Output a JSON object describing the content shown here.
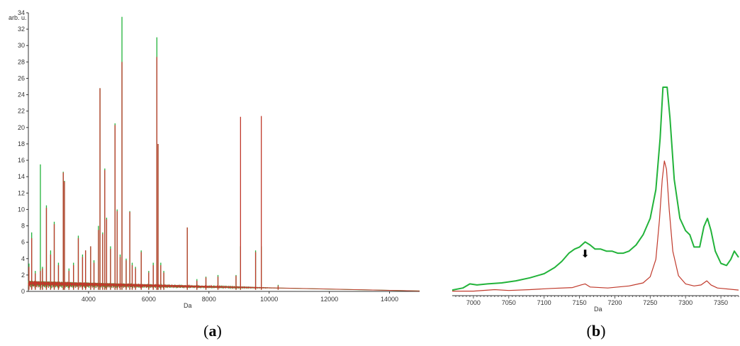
{
  "figure": {
    "panel_a": {
      "open": "(",
      "letter": "a",
      "close": ")"
    },
    "panel_b": {
      "open": "(",
      "letter": "b",
      "close": ")"
    }
  },
  "colors": {
    "green": "#22b33a",
    "red": "#c0392b",
    "axis": "#333333"
  },
  "chart_data": [
    {
      "type": "line",
      "title": "",
      "xlabel": "Da",
      "ylabel": "arb. u.",
      "xlim": [
        2000,
        15000
      ],
      "ylim": [
        0,
        34
      ],
      "xticks": [
        4000,
        6000,
        8000,
        10000,
        12000,
        14000
      ],
      "yticks": [
        0,
        2,
        4,
        6,
        8,
        10,
        12,
        14,
        16,
        18,
        20,
        22,
        24,
        26,
        28,
        30,
        32,
        34
      ],
      "baseline": 0.4,
      "series": [
        {
          "color": "green",
          "peaks": [
            [
              2020,
              3.4
            ],
            [
              2110,
              7.2
            ],
            [
              2230,
              2.5
            ],
            [
              2400,
              15.5
            ],
            [
              2470,
              3.0
            ],
            [
              2600,
              10.5
            ],
            [
              2740,
              5.0
            ],
            [
              2860,
              8.5
            ],
            [
              3000,
              3.5
            ],
            [
              3160,
              14.6
            ],
            [
              3200,
              13.5
            ],
            [
              3350,
              2.8
            ],
            [
              3500,
              3.5
            ],
            [
              3660,
              6.8
            ],
            [
              3800,
              4.5
            ],
            [
              3900,
              5.0
            ],
            [
              4070,
              5.5
            ],
            [
              4180,
              3.8
            ],
            [
              4330,
              8.0
            ],
            [
              4380,
              24.8
            ],
            [
              4470,
              7.2
            ],
            [
              4540,
              15.0
            ],
            [
              4600,
              9.0
            ],
            [
              4730,
              5.5
            ],
            [
              4880,
              20.5
            ],
            [
              4950,
              10.0
            ],
            [
              5050,
              4.5
            ],
            [
              5110,
              33.5
            ],
            [
              5250,
              4.0
            ],
            [
              5370,
              9.8
            ],
            [
              5450,
              3.5
            ],
            [
              5560,
              3.0
            ],
            [
              5750,
              5.0
            ],
            [
              6000,
              2.5
            ],
            [
              6150,
              3.5
            ],
            [
              6270,
              31.0
            ],
            [
              6310,
              18.0
            ],
            [
              6400,
              3.5
            ],
            [
              6500,
              2.5
            ],
            [
              7280,
              7.8
            ],
            [
              7600,
              1.5
            ],
            [
              7900,
              1.8
            ],
            [
              8300,
              2.0
            ],
            [
              8900,
              2.0
            ],
            [
              9050,
              5.5
            ],
            [
              9550,
              5.0
            ],
            [
              9740,
              5.5
            ],
            [
              10300,
              0.8
            ]
          ]
        },
        {
          "color": "red",
          "peaks": [
            [
              2020,
              3.0
            ],
            [
              2110,
              6.5
            ],
            [
              2230,
              2.2
            ],
            [
              2400,
              2.5
            ],
            [
              2470,
              2.8
            ],
            [
              2600,
              10.2
            ],
            [
              2740,
              4.5
            ],
            [
              2860,
              8.2
            ],
            [
              3000,
              3.2
            ],
            [
              3160,
              14.5
            ],
            [
              3200,
              13.4
            ],
            [
              3350,
              2.5
            ],
            [
              3500,
              3.2
            ],
            [
              3660,
              6.5
            ],
            [
              3800,
              4.2
            ],
            [
              3900,
              5.0
            ],
            [
              4070,
              5.5
            ],
            [
              4180,
              3.5
            ],
            [
              4330,
              7.5
            ],
            [
              4380,
              24.8
            ],
            [
              4470,
              7.0
            ],
            [
              4540,
              14.8
            ],
            [
              4600,
              8.8
            ],
            [
              4730,
              5.2
            ],
            [
              4880,
              20.3
            ],
            [
              4950,
              9.8
            ],
            [
              5050,
              4.2
            ],
            [
              5110,
              28.0
            ],
            [
              5250,
              3.8
            ],
            [
              5370,
              9.7
            ],
            [
              5450,
              3.2
            ],
            [
              5560,
              2.8
            ],
            [
              5750,
              4.8
            ],
            [
              6000,
              2.3
            ],
            [
              6150,
              3.2
            ],
            [
              6270,
              28.6
            ],
            [
              6310,
              18.0
            ],
            [
              6400,
              3.2
            ],
            [
              6500,
              2.3
            ],
            [
              7280,
              7.8
            ],
            [
              7600,
              1.3
            ],
            [
              7900,
              1.7
            ],
            [
              8300,
              1.8
            ],
            [
              8900,
              1.9
            ],
            [
              9050,
              21.3
            ],
            [
              9550,
              4.8
            ],
            [
              9740,
              21.4
            ],
            [
              10300,
              0.7
            ]
          ]
        }
      ]
    },
    {
      "type": "line",
      "title": "",
      "xlabel": "Da",
      "ylabel": "",
      "xlim": [
        6970,
        7375
      ],
      "ylim": [
        0,
        1
      ],
      "xticks": [
        7000,
        7050,
        7100,
        7150,
        7200,
        7250,
        7300,
        7350
      ],
      "annotation": {
        "symbol": "⬇",
        "x": 7158
      },
      "series": [
        {
          "color": "green",
          "points": [
            [
              6970,
              0.01
            ],
            [
              6985,
              0.02
            ],
            [
              6995,
              0.04
            ],
            [
              7005,
              0.035
            ],
            [
              7020,
              0.04
            ],
            [
              7040,
              0.045
            ],
            [
              7060,
              0.055
            ],
            [
              7080,
              0.07
            ],
            [
              7100,
              0.09
            ],
            [
              7115,
              0.12
            ],
            [
              7125,
              0.15
            ],
            [
              7135,
              0.19
            ],
            [
              7143,
              0.21
            ],
            [
              7150,
              0.22
            ],
            [
              7158,
              0.245
            ],
            [
              7165,
              0.23
            ],
            [
              7172,
              0.21
            ],
            [
              7180,
              0.21
            ],
            [
              7188,
              0.2
            ],
            [
              7196,
              0.2
            ],
            [
              7204,
              0.19
            ],
            [
              7212,
              0.19
            ],
            [
              7220,
              0.2
            ],
            [
              7230,
              0.23
            ],
            [
              7240,
              0.28
            ],
            [
              7250,
              0.36
            ],
            [
              7258,
              0.5
            ],
            [
              7264,
              0.75
            ],
            [
              7268,
              1.0
            ],
            [
              7270,
              1.0
            ],
            [
              7274,
              1.0
            ],
            [
              7278,
              0.85
            ],
            [
              7284,
              0.55
            ],
            [
              7292,
              0.36
            ],
            [
              7300,
              0.3
            ],
            [
              7306,
              0.28
            ],
            [
              7312,
              0.22
            ],
            [
              7320,
              0.22
            ],
            [
              7326,
              0.32
            ],
            [
              7331,
              0.36
            ],
            [
              7336,
              0.3
            ],
            [
              7342,
              0.2
            ],
            [
              7350,
              0.14
            ],
            [
              7358,
              0.13
            ],
            [
              7364,
              0.16
            ],
            [
              7369,
              0.2
            ],
            [
              7375,
              0.17
            ]
          ]
        },
        {
          "color": "red",
          "points": [
            [
              6970,
              0.005
            ],
            [
              7000,
              0.005
            ],
            [
              7030,
              0.012
            ],
            [
              7050,
              0.008
            ],
            [
              7080,
              0.012
            ],
            [
              7110,
              0.018
            ],
            [
              7140,
              0.022
            ],
            [
              7152,
              0.035
            ],
            [
              7158,
              0.04
            ],
            [
              7165,
              0.025
            ],
            [
              7190,
              0.02
            ],
            [
              7220,
              0.03
            ],
            [
              7240,
              0.045
            ],
            [
              7250,
              0.075
            ],
            [
              7258,
              0.16
            ],
            [
              7263,
              0.35
            ],
            [
              7267,
              0.55
            ],
            [
              7270,
              0.64
            ],
            [
              7273,
              0.6
            ],
            [
              7277,
              0.4
            ],
            [
              7282,
              0.2
            ],
            [
              7290,
              0.08
            ],
            [
              7300,
              0.04
            ],
            [
              7312,
              0.03
            ],
            [
              7322,
              0.035
            ],
            [
              7330,
              0.055
            ],
            [
              7336,
              0.035
            ],
            [
              7345,
              0.02
            ],
            [
              7375,
              0.01
            ]
          ]
        }
      ]
    }
  ]
}
